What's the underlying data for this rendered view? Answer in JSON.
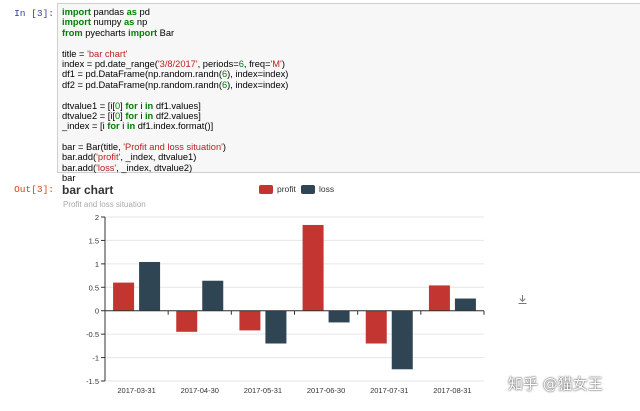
{
  "notebook": {
    "in_prompt": "In [3]:",
    "out_prompt": "Out[3]:",
    "code_lines": [
      [
        {
          "t": "import",
          "c": "kw"
        },
        {
          "t": " pandas "
        },
        {
          "t": "as",
          "c": "kw"
        },
        {
          "t": " pd"
        }
      ],
      [
        {
          "t": "import",
          "c": "kw"
        },
        {
          "t": " numpy "
        },
        {
          "t": "as",
          "c": "kw"
        },
        {
          "t": " np"
        }
      ],
      [
        {
          "t": "from",
          "c": "kw"
        },
        {
          "t": " pyecharts "
        },
        {
          "t": "import",
          "c": "kw"
        },
        {
          "t": " Bar"
        }
      ],
      [],
      [
        {
          "t": "title = "
        },
        {
          "t": "'bar chart'",
          "c": "str"
        }
      ],
      [
        {
          "t": "index = pd.date_range("
        },
        {
          "t": "'3/8/2017'",
          "c": "str"
        },
        {
          "t": ", periods="
        },
        {
          "t": "6",
          "c": "num"
        },
        {
          "t": ", freq="
        },
        {
          "t": "'M'",
          "c": "str"
        },
        {
          "t": ")"
        }
      ],
      [
        {
          "t": "df1 = pd.DataFrame(np.random.randn("
        },
        {
          "t": "6",
          "c": "num"
        },
        {
          "t": "), index=index)"
        }
      ],
      [
        {
          "t": "df2 = pd.DataFrame(np.random.randn("
        },
        {
          "t": "6",
          "c": "num"
        },
        {
          "t": "), index=index)"
        }
      ],
      [],
      [
        {
          "t": "dtvalue1 = [i["
        },
        {
          "t": "0",
          "c": "num"
        },
        {
          "t": "] "
        },
        {
          "t": "for",
          "c": "kw"
        },
        {
          "t": " i "
        },
        {
          "t": "in",
          "c": "kw"
        },
        {
          "t": " df1.values]"
        }
      ],
      [
        {
          "t": "dtvalue2 = [i["
        },
        {
          "t": "0",
          "c": "num"
        },
        {
          "t": "] "
        },
        {
          "t": "for",
          "c": "kw"
        },
        {
          "t": " i "
        },
        {
          "t": "in",
          "c": "kw"
        },
        {
          "t": " df2.values]"
        }
      ],
      [
        {
          "t": "_index = [i "
        },
        {
          "t": "for",
          "c": "kw"
        },
        {
          "t": " i "
        },
        {
          "t": "in",
          "c": "kw"
        },
        {
          "t": " df1.index.format()]"
        }
      ],
      [],
      [
        {
          "t": "bar = Bar(title, "
        },
        {
          "t": "'Profit and loss situation'",
          "c": "str"
        },
        {
          "t": ")"
        }
      ],
      [
        {
          "t": "bar.add("
        },
        {
          "t": "'profit'",
          "c": "str"
        },
        {
          "t": ", _index, dtvalue1)"
        }
      ],
      [
        {
          "t": "bar.add("
        },
        {
          "t": "'loss'",
          "c": "str"
        },
        {
          "t": ", _index, dtvalue2)"
        }
      ],
      [
        {
          "t": "bar"
        }
      ]
    ]
  },
  "chart_data": {
    "type": "bar",
    "title": "bar chart",
    "subtitle": "Profit and loss situation",
    "legend_position": "top-center",
    "categories": [
      "2017-03-31",
      "2017-04-30",
      "2017-05-31",
      "2017-06-30",
      "2017-07-31",
      "2017-08-31"
    ],
    "series": [
      {
        "name": "profit",
        "color": "#c23531",
        "values": [
          0.6,
          -0.45,
          -0.42,
          1.83,
          -0.7,
          0.54
        ]
      },
      {
        "name": "loss",
        "color": "#2f4554",
        "values": [
          1.04,
          0.64,
          -0.7,
          -0.25,
          -1.25,
          0.26
        ]
      }
    ],
    "yticks": [
      "2",
      "1.5",
      "1",
      "0.5",
      "0",
      "-0.5",
      "-1",
      "-1.5"
    ],
    "ylim": [
      -1.5,
      2
    ],
    "grid": "horizontal"
  },
  "icons": {
    "download": "download-icon"
  },
  "watermark": "知乎 @猫女王"
}
